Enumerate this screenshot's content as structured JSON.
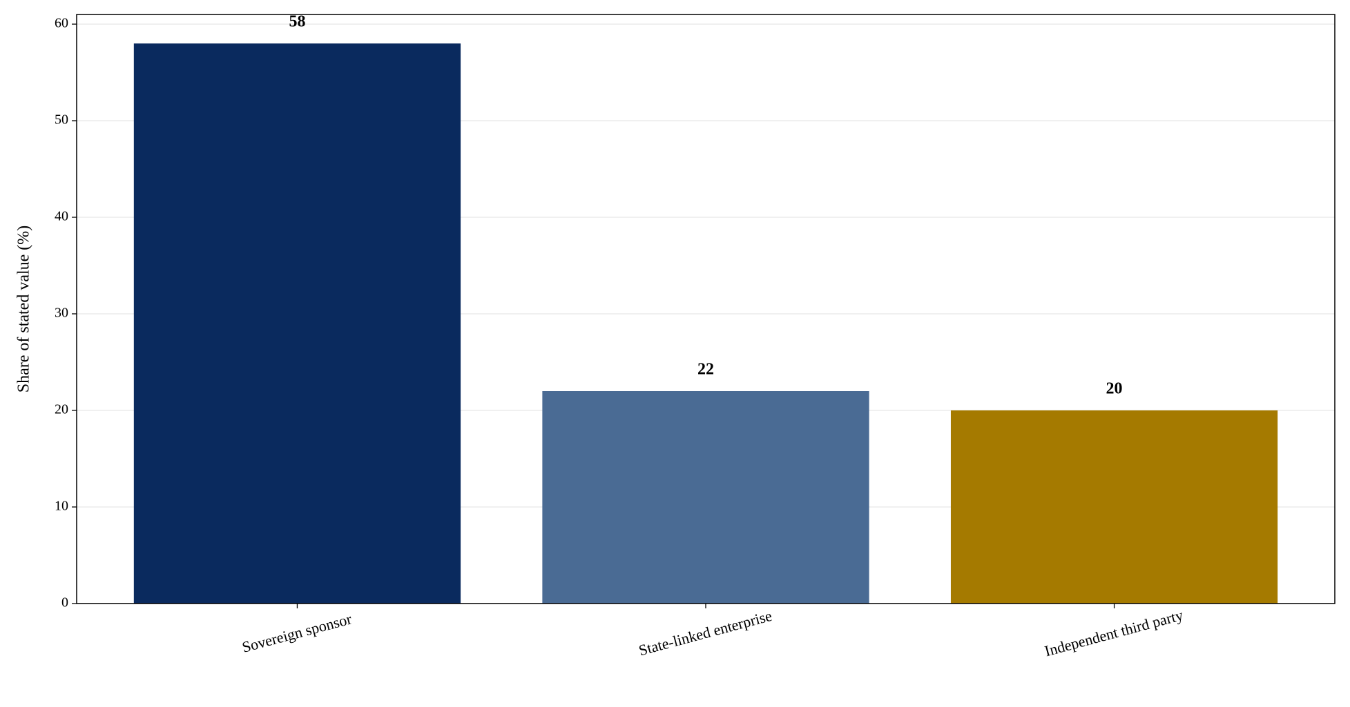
{
  "chart_data": {
    "type": "bar",
    "y_label": "Share of stated value (%)",
    "categories": [
      "Sovereign sponsor",
      "State-linked enterprise",
      "Independent third party"
    ],
    "values": [
      58,
      22,
      20
    ],
    "colors": [
      "#0a2a5e",
      "#4a6b94",
      "#a57a00"
    ],
    "ylim": [
      0,
      61
    ],
    "yticks": [
      0,
      10,
      20,
      30,
      40,
      50,
      60
    ],
    "grid": true
  }
}
